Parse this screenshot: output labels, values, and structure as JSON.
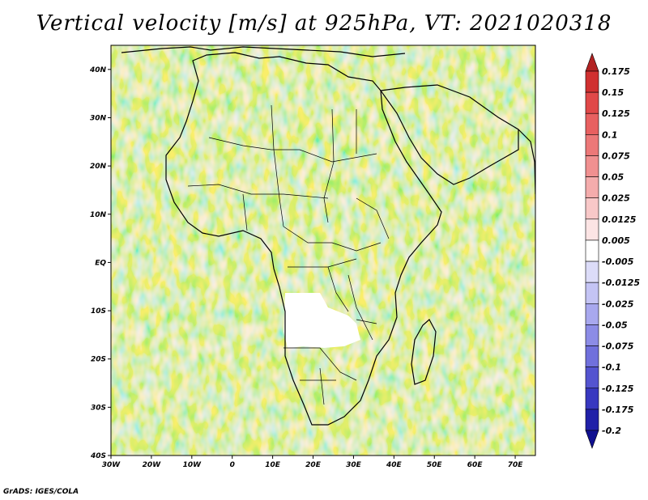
{
  "title": "Vertical velocity [m/s] at 925hPa, VT: 2021020318",
  "credit": "GrADS: IGES/COLA",
  "map": {
    "lon_range": [
      -30,
      75
    ],
    "lat_range": [
      -40,
      45
    ],
    "lon_ticks": [
      "30W",
      "20W",
      "10W",
      "0",
      "10E",
      "20E",
      "30E",
      "40E",
      "50E",
      "60E",
      "70E"
    ],
    "lat_ticks": [
      "40N",
      "30N",
      "20N",
      "10N",
      "EQ",
      "10S",
      "20S",
      "30S",
      "40S"
    ]
  },
  "colorbar": {
    "labels": [
      "0.175",
      "0.15",
      "0.125",
      "0.1",
      "0.075",
      "0.05",
      "0.025",
      "0.0125",
      "0.005",
      "-0.005",
      "-0.0125",
      "-0.025",
      "-0.05",
      "-0.075",
      "-0.1",
      "-0.125",
      "-0.175",
      "-0.2"
    ],
    "colors": [
      "#b22222",
      "#d03030",
      "#e04848",
      "#e86060",
      "#ec7878",
      "#f09090",
      "#f4acac",
      "#f8c8c8",
      "#fce4e4",
      "#ffffff",
      "#dcdcf8",
      "#c4c4f4",
      "#a8a8ee",
      "#8c8ce6",
      "#7070dc",
      "#5454d0",
      "#3838c0",
      "#2020a8",
      "#101090"
    ]
  }
}
